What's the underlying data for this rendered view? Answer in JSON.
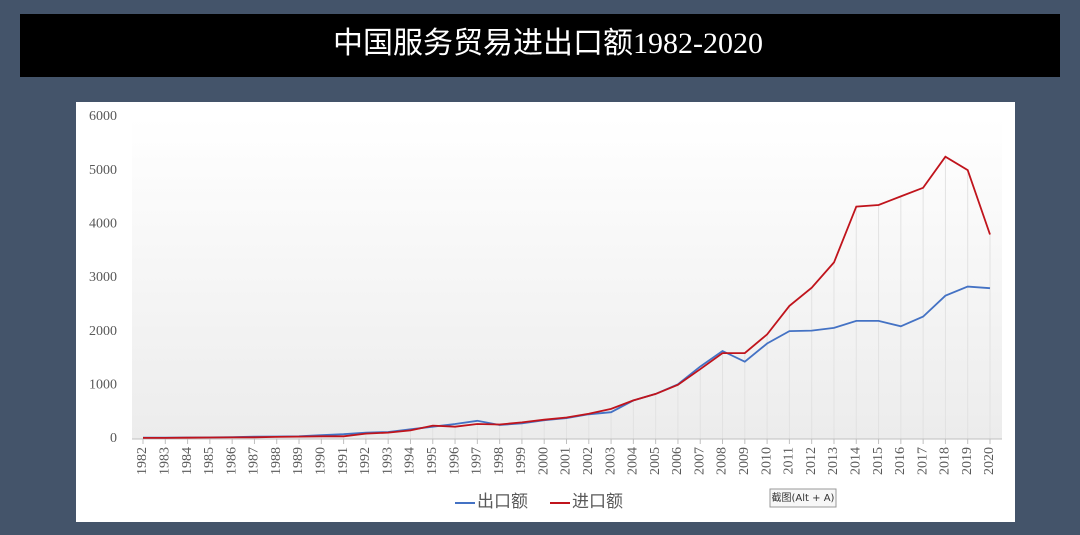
{
  "title": "中国服务贸易进出口额1982-2020",
  "tooltip": "截图(Alt + A)",
  "chart_data": {
    "type": "line",
    "categories": [
      "1982",
      "1983",
      "1984",
      "1985",
      "1986",
      "1987",
      "1988",
      "1989",
      "1990",
      "1991",
      "1992",
      "1993",
      "1994",
      "1995",
      "1996",
      "1997",
      "1998",
      "1999",
      "2000",
      "2001",
      "2002",
      "2003",
      "2004",
      "2005",
      "2006",
      "2007",
      "2008",
      "2009",
      "2010",
      "2011",
      "2012",
      "2013",
      "2014",
      "2015",
      "2016",
      "2017",
      "2018",
      "2019",
      "2020"
    ],
    "series": [
      {
        "name": "出口额",
        "color": "#4472c4",
        "values": [
          25,
          25,
          28,
          30,
          36,
          42,
          47,
          50,
          70,
          90,
          120,
          130,
          180,
          230,
          280,
          340,
          260,
          290,
          350,
          390,
          460,
          500,
          720,
          840,
          1020,
          1350,
          1640,
          1440,
          1780,
          2010,
          2020,
          2070,
          2200,
          2200,
          2100,
          2280,
          2670,
          2840,
          2810
        ]
      },
      {
        "name": "进口额",
        "color": "#c0141c",
        "values": [
          20,
          20,
          25,
          28,
          30,
          32,
          40,
          45,
          50,
          50,
          100,
          120,
          160,
          250,
          230,
          280,
          270,
          310,
          360,
          400,
          470,
          560,
          720,
          840,
          1010,
          1300,
          1600,
          1600,
          1950,
          2480,
          2820,
          3290,
          4330,
          4360,
          4520,
          4680,
          5260,
          5010,
          3810
        ]
      }
    ],
    "ylim": [
      0,
      6000
    ],
    "yticks": [
      0,
      1000,
      2000,
      3000,
      4000,
      5000,
      6000
    ],
    "grid": false,
    "legend": "bottom"
  }
}
